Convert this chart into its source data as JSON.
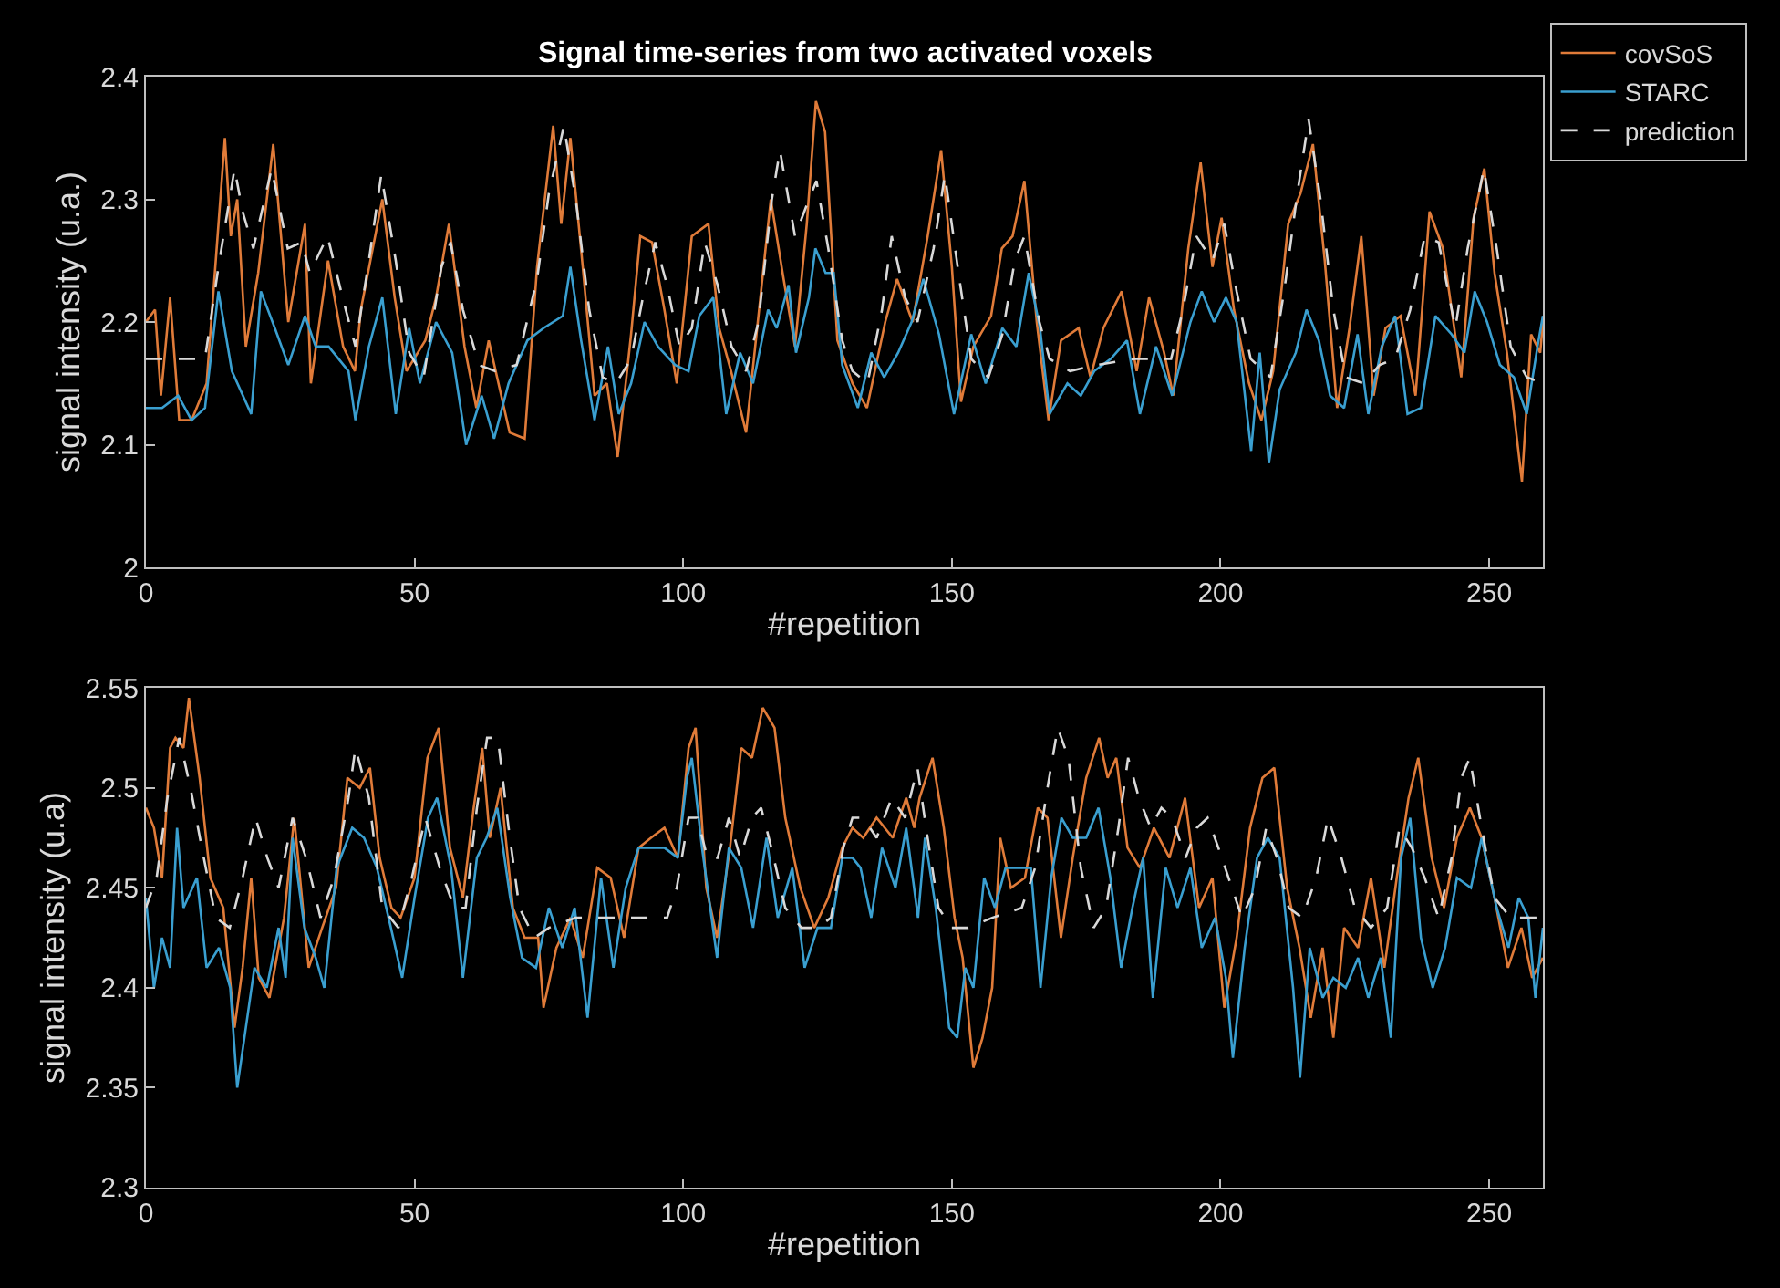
{
  "chart_data": [
    {
      "type": "line",
      "title": "Signal time-series from two activated voxels",
      "xlabel": "#repetition",
      "ylabel": "signal intensity (u.a.)",
      "xlim": [
        0,
        260
      ],
      "xticks": [
        0,
        50,
        100,
        150,
        200,
        250
      ],
      "ylim": [
        2,
        2.4
      ],
      "yticks": [
        2,
        2.1,
        2.2,
        2.3,
        2.4
      ],
      "grid": false,
      "legend": "top right",
      "marker": "none",
      "series": [
        {
          "name": "covSoS",
          "color": "#e07b39",
          "line_style": "solid",
          "x": [
            0,
            1.7,
            2.8,
            4.5,
            6.2,
            8.5,
            11.3,
            14.7,
            15.8,
            17,
            18.6,
            20.9,
            23.7,
            26.5,
            29.6,
            30.7,
            33.9,
            36.7,
            38.9,
            40,
            44,
            46.3,
            48.5,
            52,
            54,
            56.4,
            59.3,
            61.5,
            63.8,
            67.7,
            70.5,
            72.8,
            75.8,
            77.3,
            79,
            81.3,
            83.5,
            85.8,
            87.8,
            90.3,
            92,
            94.2,
            96.5,
            98.8,
            101.6,
            104.7,
            106.7,
            108.9,
            111.7,
            114,
            116.3,
            118.5,
            120.8,
            123,
            124.7,
            126.4,
            128.7,
            131.5,
            134.2,
            137.6,
            139.8,
            142.7,
            145.5,
            148,
            150,
            151.7,
            154,
            157.3,
            159.3,
            161.3,
            163.5,
            165.8,
            168,
            170.3,
            173.6,
            175.8,
            178.2,
            181.6,
            184.4,
            186.7,
            189.5,
            191.2,
            194,
            196.3,
            198.5,
            200.2,
            202.5,
            205.3,
            207.6,
            209.8,
            212.6,
            214.9,
            217.2,
            219.4,
            221.7,
            224,
            226.2,
            228.5,
            230.7,
            233.5,
            236.3,
            238.9,
            241.4,
            244.8,
            247.1,
            249.1,
            251,
            253.3,
            256.1,
            257.8,
            259.5,
            260
          ],
          "values": [
            2.2,
            2.21,
            2.14,
            2.22,
            2.12,
            2.12,
            2.15,
            2.35,
            2.27,
            2.3,
            2.18,
            2.24,
            2.345,
            2.2,
            2.28,
            2.15,
            2.25,
            2.18,
            2.16,
            2.21,
            2.3,
            2.22,
            2.16,
            2.185,
            2.22,
            2.28,
            2.18,
            2.13,
            2.185,
            2.11,
            2.105,
            2.245,
            2.36,
            2.28,
            2.35,
            2.245,
            2.14,
            2.15,
            2.09,
            2.19,
            2.27,
            2.265,
            2.21,
            2.15,
            2.27,
            2.28,
            2.195,
            2.16,
            2.11,
            2.205,
            2.3,
            2.24,
            2.18,
            2.28,
            2.38,
            2.355,
            2.185,
            2.15,
            2.13,
            2.2,
            2.235,
            2.2,
            2.27,
            2.34,
            2.245,
            2.135,
            2.18,
            2.205,
            2.26,
            2.27,
            2.315,
            2.2,
            2.12,
            2.185,
            2.195,
            2.155,
            2.195,
            2.225,
            2.16,
            2.22,
            2.175,
            2.14,
            2.26,
            2.33,
            2.245,
            2.285,
            2.21,
            2.15,
            2.12,
            2.16,
            2.28,
            2.305,
            2.345,
            2.25,
            2.13,
            2.195,
            2.27,
            2.14,
            2.195,
            2.205,
            2.14,
            2.29,
            2.26,
            2.155,
            2.285,
            2.325,
            2.24,
            2.175,
            2.07,
            2.19,
            2.175,
            2.2
          ]
        },
        {
          "name": "STARC",
          "color": "#3a9fd0",
          "line_style": "solid",
          "x": [
            0,
            3,
            6,
            8.5,
            11,
            13.5,
            16,
            19.6,
            21.4,
            24,
            26.5,
            29.6,
            31.6,
            34,
            37.7,
            39,
            41.5,
            44,
            46.5,
            49,
            51,
            54,
            57,
            59.6,
            62.5,
            64.8,
            67.5,
            71,
            74,
            77.6,
            79,
            81,
            83.5,
            86,
            88,
            90.3,
            92.8,
            95.3,
            98.5,
            101,
            103,
            105.6,
            108,
            110.6,
            113,
            115.8,
            117.4,
            119.6,
            121,
            123.4,
            124.6,
            126.5,
            128,
            129.6,
            132.5,
            135,
            137.4,
            140,
            142.5,
            144.7,
            147.6,
            150.4,
            153.6,
            156.3,
            159.4,
            162,
            164.3,
            166.4,
            168.2,
            171.5,
            174,
            176.5,
            179.6,
            182.6,
            185,
            188,
            191,
            194.4,
            196.5,
            198.8,
            201,
            203,
            205.7,
            207.3,
            209,
            211,
            214,
            216,
            218.3,
            220.4,
            223,
            225.5,
            227.5,
            230,
            232.5,
            234.8,
            237.3,
            240,
            243,
            245.4,
            247.3,
            249.6,
            252,
            254.6,
            257,
            259,
            260
          ],
          "values": [
            2.13,
            2.13,
            2.14,
            2.12,
            2.13,
            2.225,
            2.16,
            2.125,
            2.225,
            2.195,
            2.165,
            2.205,
            2.18,
            2.18,
            2.16,
            2.12,
            2.18,
            2.22,
            2.125,
            2.195,
            2.15,
            2.2,
            2.175,
            2.1,
            2.14,
            2.105,
            2.15,
            2.185,
            2.195,
            2.205,
            2.245,
            2.185,
            2.12,
            2.18,
            2.125,
            2.15,
            2.2,
            2.18,
            2.165,
            2.16,
            2.205,
            2.22,
            2.125,
            2.175,
            2.15,
            2.21,
            2.195,
            2.23,
            2.175,
            2.22,
            2.26,
            2.24,
            2.24,
            2.165,
            2.13,
            2.175,
            2.155,
            2.175,
            2.2,
            2.235,
            2.19,
            2.125,
            2.19,
            2.15,
            2.195,
            2.18,
            2.24,
            2.195,
            2.125,
            2.15,
            2.14,
            2.16,
            2.17,
            2.185,
            2.125,
            2.18,
            2.14,
            2.2,
            2.225,
            2.2,
            2.22,
            2.2,
            2.095,
            2.175,
            2.085,
            2.145,
            2.175,
            2.21,
            2.185,
            2.14,
            2.13,
            2.19,
            2.125,
            2.18,
            2.205,
            2.125,
            2.13,
            2.205,
            2.19,
            2.175,
            2.225,
            2.2,
            2.165,
            2.155,
            2.125,
            2.18,
            2.205
          ]
        },
        {
          "name": "prediction",
          "color": "#d9d9d9",
          "line_style": "dashed",
          "x": [
            0,
            11,
            13.5,
            16.5,
            18,
            20,
            23.4,
            26.4,
            29,
            30.5,
            33.8,
            36.6,
            39,
            41.5,
            43.8,
            46.5,
            49,
            51.7,
            55,
            56.7,
            59,
            62,
            65,
            69,
            72.8,
            75,
            77.8,
            80,
            82.5,
            85,
            87.5,
            90.3,
            92.5,
            94.8,
            97,
            99.3,
            101.6,
            104,
            106.4,
            109,
            111.7,
            114,
            116.5,
            118,
            120.8,
            123.4,
            124.8,
            127,
            129.6,
            131.5,
            134.3,
            137,
            138.8,
            141.3,
            143.6,
            146.6,
            148.7,
            151.4,
            153.6,
            156.8,
            159.4,
            161.7,
            163.5,
            166.3,
            168.2,
            172,
            177,
            184,
            190.8,
            193,
            195.5,
            198.5,
            200.7,
            203,
            205.6,
            209.3,
            212,
            214.3,
            216.4,
            218.6,
            221,
            223.3,
            226.6,
            229.6,
            232.5,
            235.3,
            238,
            240.6,
            243.7,
            246,
            249,
            251.4,
            254,
            257,
            260
          ],
          "values": [
            2.17,
            2.17,
            2.245,
            2.325,
            2.29,
            2.26,
            2.325,
            2.26,
            2.265,
            2.24,
            2.27,
            2.22,
            2.18,
            2.25,
            2.32,
            2.25,
            2.175,
            2.155,
            2.245,
            2.265,
            2.21,
            2.165,
            2.16,
            2.165,
            2.235,
            2.305,
            2.36,
            2.3,
            2.21,
            2.155,
            2.15,
            2.17,
            2.22,
            2.265,
            2.23,
            2.18,
            2.195,
            2.265,
            2.23,
            2.18,
            2.16,
            2.2,
            2.3,
            2.34,
            2.27,
            2.3,
            2.315,
            2.26,
            2.185,
            2.16,
            2.15,
            2.21,
            2.27,
            2.22,
            2.2,
            2.26,
            2.32,
            2.235,
            2.17,
            2.155,
            2.19,
            2.25,
            2.27,
            2.2,
            2.17,
            2.16,
            2.165,
            2.17,
            2.17,
            2.21,
            2.27,
            2.25,
            2.28,
            2.225,
            2.17,
            2.155,
            2.23,
            2.305,
            2.365,
            2.3,
            2.21,
            2.155,
            2.15,
            2.165,
            2.17,
            2.21,
            2.27,
            2.265,
            2.195,
            2.26,
            2.325,
            2.26,
            2.18,
            2.155,
            2.15
          ]
        }
      ]
    },
    {
      "type": "line",
      "xlabel": "#repetition",
      "ylabel": "signal intensity (u.a)",
      "xlim": [
        0,
        260
      ],
      "xticks": [
        0,
        50,
        100,
        150,
        200,
        250
      ],
      "ylim": [
        2.3,
        2.55
      ],
      "yticks": [
        2.3,
        2.35,
        2.4,
        2.45,
        2.5,
        2.55
      ],
      "grid": false,
      "marker": "none",
      "series": [
        {
          "color": "#e07b39",
          "line_style": "solid",
          "x": [
            0,
            1.5,
            3,
            4.5,
            5.5,
            7,
            8,
            10,
            12,
            14.4,
            16.5,
            18,
            19.6,
            21,
            23,
            25.7,
            27.6,
            30.3,
            32.8,
            35.4,
            37.5,
            39.8,
            41.7,
            43.5,
            45.7,
            47.4,
            50,
            52.4,
            54.5,
            56.6,
            59,
            61,
            62.6,
            64,
            66,
            68.3,
            70.5,
            73,
            74,
            76.4,
            79,
            81.3,
            84,
            86.5,
            89,
            91.7,
            94,
            96.5,
            99,
            101,
            102.3,
            104.3,
            106.3,
            108.7,
            110.8,
            112.8,
            114.8,
            117,
            119,
            121.8,
            124.4,
            127,
            129.6,
            131.5,
            133.5,
            136,
            139,
            141.5,
            143,
            144,
            146.4,
            148.5,
            150.5,
            152,
            154,
            155.7,
            157.5,
            159,
            161,
            163.6,
            166,
            167.8,
            170.3,
            172.5,
            175,
            177.4,
            179,
            180.6,
            182.7,
            185,
            187.6,
            190.5,
            193.4,
            196,
            198.5,
            200.7,
            203,
            205.5,
            207.8,
            210,
            212.4,
            214.7,
            216.8,
            219,
            221,
            223,
            225.6,
            228,
            230.5,
            232.8,
            235,
            236.8,
            239.3,
            241.6,
            244,
            246.4,
            248.6,
            251,
            253.5,
            256,
            258,
            260
          ],
          "values": [
            2.49,
            2.48,
            2.455,
            2.52,
            2.525,
            2.52,
            2.545,
            2.505,
            2.455,
            2.44,
            2.38,
            2.41,
            2.455,
            2.405,
            2.395,
            2.435,
            2.485,
            2.41,
            2.43,
            2.45,
            2.505,
            2.5,
            2.51,
            2.465,
            2.44,
            2.435,
            2.455,
            2.515,
            2.53,
            2.47,
            2.445,
            2.49,
            2.52,
            2.475,
            2.5,
            2.44,
            2.425,
            2.425,
            2.39,
            2.42,
            2.435,
            2.415,
            2.46,
            2.455,
            2.425,
            2.47,
            2.475,
            2.48,
            2.465,
            2.52,
            2.53,
            2.45,
            2.425,
            2.47,
            2.52,
            2.515,
            2.54,
            2.53,
            2.485,
            2.45,
            2.43,
            2.445,
            2.47,
            2.48,
            2.475,
            2.485,
            2.475,
            2.495,
            2.48,
            2.495,
            2.515,
            2.48,
            2.435,
            2.415,
            2.36,
            2.375,
            2.4,
            2.475,
            2.45,
            2.455,
            2.49,
            2.485,
            2.425,
            2.465,
            2.505,
            2.525,
            2.505,
            2.515,
            2.47,
            2.46,
            2.48,
            2.465,
            2.495,
            2.44,
            2.455,
            2.39,
            2.425,
            2.48,
            2.505,
            2.51,
            2.45,
            2.42,
            2.385,
            2.42,
            2.375,
            2.43,
            2.42,
            2.455,
            2.41,
            2.455,
            2.495,
            2.515,
            2.465,
            2.44,
            2.475,
            2.49,
            2.475,
            2.445,
            2.41,
            2.43,
            2.405,
            2.415
          ]
        },
        {
          "color": "#3a9fd0",
          "line_style": "solid",
          "x": [
            0,
            1.5,
            3,
            4.5,
            5.8,
            7,
            9.5,
            11.3,
            13.6,
            15.7,
            17,
            18.6,
            20.2,
            22.5,
            24.7,
            26,
            27.3,
            29.5,
            31.6,
            33.2,
            35.5,
            38.4,
            40.6,
            43,
            45.6,
            47.7,
            50,
            52.5,
            54.2,
            56.8,
            59,
            61.6,
            63.4,
            65.4,
            67.8,
            70,
            72.6,
            75,
            77.5,
            79.8,
            82.2,
            84.7,
            87,
            89.3,
            91.7,
            94,
            96.5,
            99,
            100.7,
            101.6,
            103.5,
            106.3,
            108.5,
            110.8,
            113,
            115.5,
            117.6,
            120.3,
            122.6,
            125,
            127.5,
            129.6,
            131.5,
            133,
            135,
            137,
            139.5,
            141.5,
            143.7,
            145,
            147,
            149.5,
            151,
            152.5,
            154,
            156,
            158,
            160,
            162.6,
            164.7,
            166.5,
            168.5,
            170.4,
            172.5,
            175,
            177.3,
            179.5,
            181.5,
            183.6,
            185.6,
            187.4,
            189.8,
            192,
            194.4,
            196.5,
            199,
            201,
            202.3,
            204.5,
            206.8,
            208.8,
            211,
            213.5,
            214.8,
            216.6,
            219,
            221,
            223.3,
            225.6,
            227.5,
            229.8,
            231.7,
            233.6,
            235.3,
            237.3,
            239.5,
            241.8,
            244,
            246.6,
            248.6,
            251.4,
            253.6,
            255.5,
            257.3,
            258.6,
            260
          ],
          "values": [
            2.445,
            2.4,
            2.425,
            2.41,
            2.48,
            2.44,
            2.455,
            2.41,
            2.42,
            2.4,
            2.35,
            2.38,
            2.41,
            2.4,
            2.43,
            2.405,
            2.475,
            2.43,
            2.415,
            2.4,
            2.46,
            2.48,
            2.475,
            2.46,
            2.43,
            2.405,
            2.445,
            2.485,
            2.495,
            2.46,
            2.405,
            2.465,
            2.475,
            2.49,
            2.445,
            2.415,
            2.41,
            2.44,
            2.42,
            2.44,
            2.385,
            2.455,
            2.41,
            2.45,
            2.47,
            2.47,
            2.47,
            2.465,
            2.505,
            2.515,
            2.47,
            2.415,
            2.47,
            2.46,
            2.43,
            2.475,
            2.435,
            2.46,
            2.41,
            2.43,
            2.43,
            2.465,
            2.465,
            2.46,
            2.435,
            2.47,
            2.45,
            2.48,
            2.435,
            2.475,
            2.44,
            2.38,
            2.375,
            2.41,
            2.4,
            2.455,
            2.44,
            2.46,
            2.46,
            2.46,
            2.4,
            2.455,
            2.485,
            2.475,
            2.475,
            2.49,
            2.455,
            2.41,
            2.44,
            2.465,
            2.395,
            2.46,
            2.44,
            2.46,
            2.42,
            2.435,
            2.405,
            2.365,
            2.42,
            2.465,
            2.475,
            2.465,
            2.4,
            2.355,
            2.42,
            2.395,
            2.405,
            2.4,
            2.415,
            2.395,
            2.415,
            2.375,
            2.465,
            2.485,
            2.425,
            2.4,
            2.42,
            2.455,
            2.45,
            2.475,
            2.44,
            2.42,
            2.445,
            2.435,
            2.395,
            2.43
          ]
        },
        {
          "color": "#d9d9d9",
          "line_style": "dashed",
          "x": [
            0,
            2,
            4,
            6.2,
            8.3,
            10.4,
            13,
            15.6,
            18,
            20.4,
            22.6,
            24.7,
            27.3,
            29.8,
            32.5,
            35,
            37.7,
            39,
            41.5,
            44,
            47,
            49.5,
            52,
            54.7,
            57.4,
            59.5,
            61.6,
            63.5,
            65.5,
            67.5,
            69.5,
            72.3,
            75,
            80,
            85,
            90,
            97,
            98.8,
            101,
            102.6,
            104.5,
            106.4,
            108.5,
            110.6,
            112.8,
            114.5,
            116.4,
            119,
            122,
            125,
            127.5,
            129.8,
            131.5,
            133.5,
            136,
            138.8,
            141.3,
            143.6,
            145.2,
            147.5,
            150,
            153,
            157.5,
            163,
            165.5,
            167.8,
            169.7,
            171.7,
            174,
            176.4,
            178.7,
            181,
            182.8,
            184.8,
            187,
            189,
            191,
            193.5,
            195.6,
            197.6,
            199.6,
            201.5,
            204,
            206.4,
            208.5,
            210.5,
            212.7,
            215.2,
            217.8,
            220,
            222.5,
            225,
            228,
            231,
            233.3,
            235.6,
            238,
            240.6,
            243,
            244.8,
            246.4,
            248.6,
            251,
            254,
            257.4,
            260
          ],
          "values": [
            2.44,
            2.455,
            2.495,
            2.525,
            2.5,
            2.47,
            2.435,
            2.43,
            2.455,
            2.485,
            2.465,
            2.45,
            2.485,
            2.465,
            2.435,
            2.455,
            2.495,
            2.52,
            2.495,
            2.44,
            2.43,
            2.455,
            2.485,
            2.46,
            2.44,
            2.44,
            2.49,
            2.525,
            2.525,
            2.48,
            2.44,
            2.425,
            2.43,
            2.435,
            2.435,
            2.435,
            2.435,
            2.45,
            2.485,
            2.485,
            2.465,
            2.465,
            2.485,
            2.465,
            2.485,
            2.49,
            2.47,
            2.44,
            2.43,
            2.43,
            2.435,
            2.47,
            2.485,
            2.485,
            2.475,
            2.495,
            2.485,
            2.51,
            2.48,
            2.44,
            2.43,
            2.43,
            2.435,
            2.44,
            2.46,
            2.5,
            2.53,
            2.515,
            2.46,
            2.43,
            2.44,
            2.48,
            2.515,
            2.495,
            2.48,
            2.49,
            2.485,
            2.465,
            2.48,
            2.485,
            2.47,
            2.455,
            2.435,
            2.45,
            2.48,
            2.465,
            2.44,
            2.435,
            2.455,
            2.485,
            2.465,
            2.44,
            2.43,
            2.44,
            2.48,
            2.47,
            2.455,
            2.435,
            2.465,
            2.505,
            2.515,
            2.48,
            2.445,
            2.435,
            2.435,
            2.435
          ]
        }
      ]
    }
  ]
}
